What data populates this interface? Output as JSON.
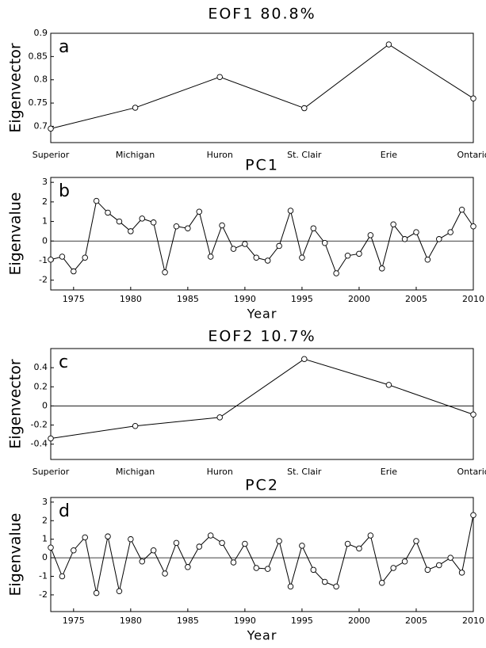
{
  "chart_data": [
    {
      "type": "line",
      "title": "EOF1 80.8%",
      "annotation": "a",
      "y_label": "Eigenvector",
      "categories": [
        "Superior",
        "Michigan",
        "Huron",
        "St. Clair",
        "Erie",
        "Ontario"
      ],
      "values": [
        0.695,
        0.74,
        0.806,
        0.739,
        0.876,
        0.76
      ],
      "ylim": [
        0.665,
        0.9
      ],
      "yticks": [
        0.7,
        0.75,
        0.8,
        0.85,
        0.9
      ],
      "zero_line": false,
      "color": "#000000"
    },
    {
      "type": "line",
      "title": "PC1",
      "annotation": "b",
      "y_label": "Eigenvalue",
      "x_label": "Year",
      "x": [
        1973,
        1974,
        1975,
        1976,
        1977,
        1978,
        1979,
        1980,
        1981,
        1982,
        1983,
        1984,
        1985,
        1986,
        1987,
        1988,
        1989,
        1990,
        1991,
        1992,
        1993,
        1994,
        1995,
        1996,
        1997,
        1998,
        1999,
        2000,
        2001,
        2002,
        2003,
        2004,
        2005,
        2006,
        2007,
        2008,
        2009,
        2010
      ],
      "values": [
        -0.95,
        -0.8,
        -1.55,
        -0.85,
        2.05,
        1.45,
        1.0,
        0.5,
        1.15,
        0.95,
        -1.6,
        0.75,
        0.65,
        1.5,
        -0.8,
        0.8,
        -0.4,
        -0.15,
        -0.85,
        -1.0,
        -0.25,
        1.55,
        -0.85,
        0.65,
        -0.1,
        -1.65,
        -0.75,
        -0.65,
        0.3,
        -1.4,
        0.85,
        0.1,
        0.45,
        -0.95,
        0.1,
        0.45,
        1.6,
        0.75
      ],
      "xlim": [
        1973,
        2010
      ],
      "xticks": [
        1975,
        1980,
        1985,
        1990,
        1995,
        2000,
        2005,
        2010
      ],
      "ylim": [
        -2.5,
        3.25
      ],
      "yticks": [
        -2,
        -1,
        0,
        1,
        2,
        3
      ],
      "zero_line": true,
      "color": "#000000"
    },
    {
      "type": "line",
      "title": "EOF2 10.7%",
      "annotation": "c",
      "y_label": "Eigenvector",
      "categories": [
        "Superior",
        "Michigan",
        "Huron",
        "St. Clair",
        "Erie",
        "Ontario"
      ],
      "values": [
        -0.34,
        -0.21,
        -0.12,
        0.49,
        0.22,
        -0.09
      ],
      "ylim": [
        -0.56,
        0.6
      ],
      "yticks": [
        -0.4,
        -0.2,
        0,
        0.2,
        0.4
      ],
      "zero_line": true,
      "color": "#000000"
    },
    {
      "type": "line",
      "title": "PC2",
      "annotation": "d",
      "y_label": "Eigenvalue",
      "x_label": "Year",
      "x": [
        1973,
        1974,
        1975,
        1976,
        1977,
        1978,
        1979,
        1980,
        1981,
        1982,
        1983,
        1984,
        1985,
        1986,
        1987,
        1988,
        1989,
        1990,
        1991,
        1992,
        1993,
        1994,
        1995,
        1996,
        1997,
        1998,
        1999,
        2000,
        2001,
        2002,
        2003,
        2004,
        2005,
        2006,
        2007,
        2008,
        2009,
        2010
      ],
      "values": [
        0.55,
        -1.0,
        0.4,
        1.1,
        -1.9,
        1.15,
        -1.8,
        1.0,
        -0.2,
        0.4,
        -0.85,
        0.8,
        -0.5,
        0.6,
        1.2,
        0.8,
        -0.25,
        0.75,
        -0.55,
        -0.6,
        0.9,
        -1.55,
        0.65,
        -0.65,
        -1.3,
        -1.55,
        0.75,
        0.5,
        1.2,
        -1.35,
        -0.55,
        -0.2,
        0.9,
        -0.65,
        -0.4,
        0.0,
        -0.8,
        2.3
      ],
      "xlim": [
        1973,
        2010
      ],
      "xticks": [
        1975,
        1980,
        1985,
        1990,
        1995,
        2000,
        2005,
        2010
      ],
      "ylim": [
        -2.9,
        3.25
      ],
      "yticks": [
        -2,
        -1,
        0,
        1,
        2,
        3
      ],
      "zero_line": true,
      "color": "#000000"
    }
  ]
}
